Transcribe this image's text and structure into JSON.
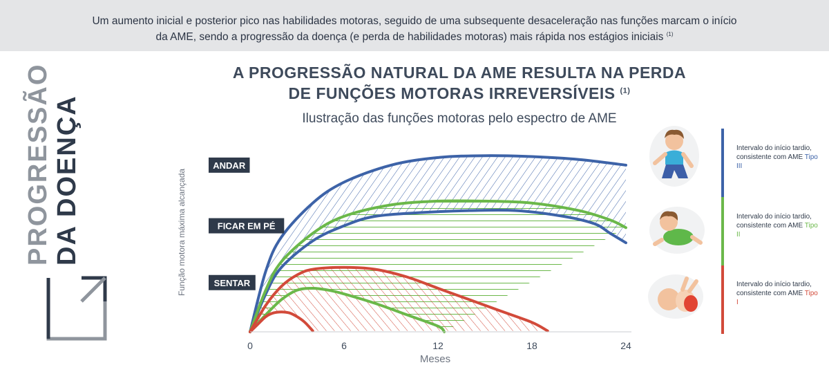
{
  "banner": {
    "line1": "Um aumento inicial e posterior pico nas habilidades motoras, seguido de uma subsequente desaceleração nas funções marcam o início",
    "line2": "da AME, sendo a progressão da doença (e perda de habilidades motoras) mais rápida nos estágios iniciais",
    "ref": "(1)"
  },
  "side_title": {
    "line1": "PROGRESSÃO",
    "line2": "DA DOENÇA"
  },
  "chart_data": {
    "type": "area",
    "title_line1": "A PROGRESSÃO NATURAL DA AME RESULTA NA PERDA",
    "title_line2": "DE FUNÇÕES MOTORAS IRREVERSÍVEIS",
    "title_ref": "(1)",
    "subtitle": "Ilustração das funções motoras pelo espectro de AME",
    "xlabel": "Meses",
    "ylabel": "Função motora máxima alcançada",
    "x_ticks": [
      "0",
      "6",
      "12",
      "18",
      "24"
    ],
    "xlim": [
      0,
      24
    ],
    "ylim": [
      0,
      100
    ],
    "milestones": [
      {
        "label": "ANDAR",
        "level": 88
      },
      {
        "label": "FICAR EM PÉ",
        "level": 56
      },
      {
        "label": "SENTAR",
        "level": 26
      }
    ],
    "bands": [
      {
        "type": "Tipo III",
        "color": "#3d63a8",
        "upper": [
          [
            0,
            0
          ],
          [
            1,
            32
          ],
          [
            2,
            50
          ],
          [
            4,
            68
          ],
          [
            6,
            79
          ],
          [
            9,
            88
          ],
          [
            12,
            92
          ],
          [
            15,
            93
          ],
          [
            18,
            92.5
          ],
          [
            21,
            91
          ],
          [
            24,
            88
          ]
        ],
        "lower": [
          [
            0,
            0
          ],
          [
            1,
            20
          ],
          [
            2,
            34
          ],
          [
            4,
            48
          ],
          [
            6,
            56
          ],
          [
            8,
            61
          ],
          [
            11,
            63
          ],
          [
            14,
            64
          ],
          [
            17,
            64
          ],
          [
            20,
            61
          ],
          [
            22,
            57
          ],
          [
            23,
            52
          ],
          [
            24,
            47
          ]
        ]
      },
      {
        "type": "Tipo II",
        "color": "#6bb84a",
        "upper": [
          [
            0,
            0
          ],
          [
            1,
            22
          ],
          [
            2,
            37
          ],
          [
            4,
            52
          ],
          [
            6,
            61
          ],
          [
            9,
            67
          ],
          [
            12,
            69
          ],
          [
            15,
            69
          ],
          [
            18,
            68
          ],
          [
            21,
            64
          ],
          [
            23,
            59
          ],
          [
            24,
            55
          ]
        ],
        "lower": [
          [
            0,
            0
          ],
          [
            1,
            9
          ],
          [
            2,
            17
          ],
          [
            3,
            22
          ],
          [
            4,
            23
          ],
          [
            5,
            22
          ],
          [
            6,
            20
          ],
          [
            8,
            15
          ],
          [
            10,
            9
          ],
          [
            12,
            3
          ],
          [
            12.4,
            0
          ]
        ]
      },
      {
        "type": "Tipo I",
        "color": "#d24a3a",
        "upper": [
          [
            0,
            0
          ],
          [
            1,
            14
          ],
          [
            2,
            24
          ],
          [
            3,
            30
          ],
          [
            4,
            33
          ],
          [
            6,
            34
          ],
          [
            8,
            33
          ],
          [
            10,
            29
          ],
          [
            12,
            23
          ],
          [
            14,
            17
          ],
          [
            16,
            11
          ],
          [
            18,
            5
          ],
          [
            19,
            0.5
          ]
        ],
        "lower": [
          [
            0,
            0
          ],
          [
            0.5,
            4
          ],
          [
            1,
            8
          ],
          [
            1.5,
            10
          ],
          [
            2,
            10.5
          ],
          [
            2.5,
            10
          ],
          [
            3,
            8
          ],
          [
            3.5,
            5
          ],
          [
            4,
            0.5
          ]
        ]
      }
    ],
    "legend": [
      {
        "text": "Intervalo do início tardio, consistente com AME",
        "type": "Tipo III",
        "color": "#3d63a8"
      },
      {
        "text": "Intervalo do início tardio, consistente com AME",
        "type": "Tipo II",
        "color": "#6bb84a"
      },
      {
        "text": "Intervalo do início tardio, consistente com AME",
        "type": "Tipo I",
        "color": "#d24a3a"
      }
    ]
  }
}
